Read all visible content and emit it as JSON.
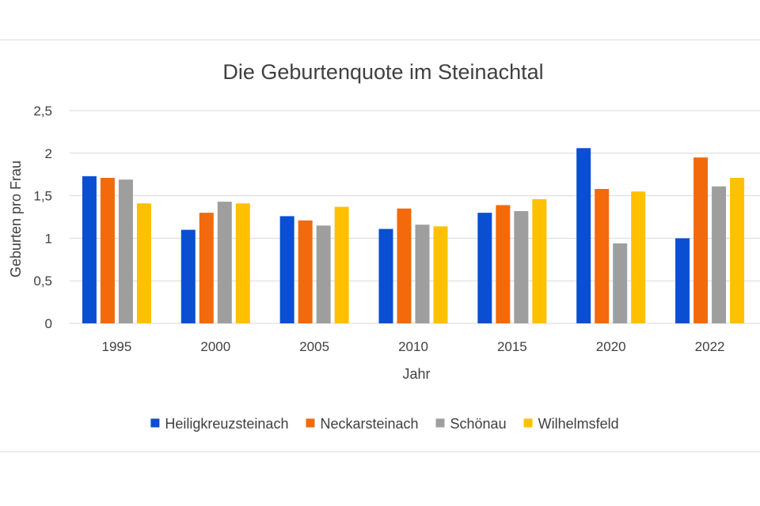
{
  "chart_data": {
    "type": "bar",
    "title": "Die Geburtenquote im Steinachtal",
    "xlabel": "Jahr",
    "ylabel": "Geburten pro Frau",
    "categories": [
      "1995",
      "2000",
      "2005",
      "2010",
      "2015",
      "2020",
      "2022"
    ],
    "ylim": [
      0,
      2.5
    ],
    "yticks": [
      0,
      0.5,
      1,
      1.5,
      2,
      2.5
    ],
    "ytick_labels": [
      "0",
      "0,5",
      "1",
      "1,5",
      "2",
      "2,5"
    ],
    "grid": true,
    "legend_position": "bottom",
    "series": [
      {
        "name": "Heiligkreuzsteinach",
        "color": "#0a4fd1",
        "values": [
          1.73,
          1.1,
          1.26,
          1.11,
          1.3,
          2.06,
          1.0
        ]
      },
      {
        "name": "Neckarsteinach",
        "color": "#f26a0c",
        "values": [
          1.71,
          1.3,
          1.21,
          1.35,
          1.39,
          1.58,
          1.95
        ]
      },
      {
        "name": "Schönau",
        "color": "#9e9e9e",
        "values": [
          1.69,
          1.43,
          1.15,
          1.16,
          1.32,
          0.94,
          1.61
        ]
      },
      {
        "name": "Wilhelmsfeld",
        "color": "#ffc000",
        "values": [
          1.41,
          1.41,
          1.37,
          1.14,
          1.46,
          1.55,
          1.71
        ]
      }
    ]
  }
}
